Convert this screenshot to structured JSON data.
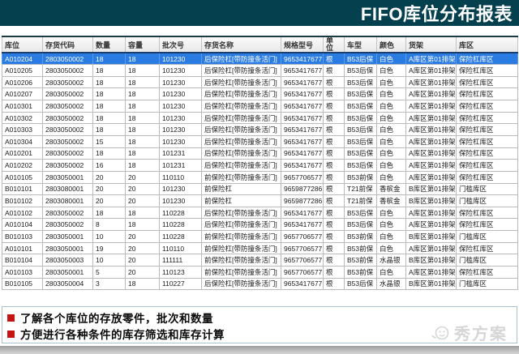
{
  "title": "FIFO库位分布报表",
  "table": {
    "columns": [
      "库位",
      "存货代码",
      "数量",
      "容量",
      "批次号",
      "存货名称",
      "规格型号",
      "单位",
      "车型",
      "颜色",
      "货架",
      "库区"
    ],
    "selected_row_index": 0,
    "rows": [
      [
        "A010204",
        "2803050002",
        "18",
        "18",
        "101230",
        "后保险杠[带防撞条活门]",
        "9653417677",
        "根",
        "B53后保",
        "白色",
        "A库区第01排架",
        "保险杠库区"
      ],
      [
        "A010205",
        "2803050002",
        "18",
        "18",
        "101230",
        "后保险杠[带防撞条活门]",
        "9653417677",
        "根",
        "B53后保",
        "白色",
        "A库区第01排架",
        "保险杠库区"
      ],
      [
        "A010206",
        "2803050002",
        "18",
        "18",
        "101230",
        "后保险杠[带防撞条活门]",
        "9653417677",
        "根",
        "B53后保",
        "白色",
        "A库区第01排架",
        "保险杠库区"
      ],
      [
        "A010207",
        "2803050002",
        "18",
        "18",
        "101230",
        "后保险杠[带防撞条活门]",
        "9653417677",
        "根",
        "B53后保",
        "白色",
        "A库区第01排架",
        "保险杠库区"
      ],
      [
        "A010301",
        "2803050002",
        "18",
        "18",
        "101230",
        "后保险杠[带防撞条活门]",
        "9653417677",
        "根",
        "B53后保",
        "白色",
        "A库区第01排架",
        "保险杠库区"
      ],
      [
        "A010302",
        "2803050002",
        "18",
        "18",
        "101230",
        "后保险杠[带防撞条活门]",
        "9653417677",
        "根",
        "B53后保",
        "白色",
        "A库区第01排架",
        "保险杠库区"
      ],
      [
        "A010303",
        "2803050002",
        "18",
        "18",
        "101230",
        "后保险杠[带防撞条活门]",
        "9653417677",
        "根",
        "B53后保",
        "白色",
        "A库区第01排架",
        "保险杠库区"
      ],
      [
        "A010304",
        "2803050002",
        "15",
        "18",
        "101230",
        "后保险杠[带防撞条活门]",
        "9653417677",
        "根",
        "B53后保",
        "白色",
        "A库区第01排架",
        "保险杠库区"
      ],
      [
        "A010201",
        "2803050002",
        "18",
        "18",
        "101231",
        "后保险杠[带防撞条活门]",
        "9653417677",
        "根",
        "B53后保",
        "白色",
        "A库区第01排架",
        "保险杠库区"
      ],
      [
        "A010202",
        "2803050002",
        "16",
        "18",
        "101231",
        "后保险杠[带防撞条活门]",
        "9653417677",
        "根",
        "B53后保",
        "白色",
        "A库区第01排架",
        "保险杠库区"
      ],
      [
        "A010105",
        "2803050001",
        "20",
        "20",
        "110110",
        "前保险杠[带防撞条活门]",
        "9657706577",
        "根",
        "B53前保",
        "白色",
        "A库区第01排架",
        "保险杠库区"
      ],
      [
        "B010101",
        "2803080001",
        "20",
        "20",
        "101230",
        "前保险杠",
        "9659877286",
        "根",
        "T21前保",
        "香槟金",
        "B库区第01排架",
        "门槛库区"
      ],
      [
        "B010102",
        "2803080001",
        "20",
        "20",
        "101230",
        "前保险杠",
        "9659877286",
        "根",
        "T21前保",
        "香槟金",
        "B库区第01排架",
        "门槛库区"
      ],
      [
        "A010102",
        "2803050002",
        "18",
        "18",
        "110228",
        "后保险杠[带防撞条活门]",
        "9653417677",
        "根",
        "B53后保",
        "白色",
        "A库区第01排架",
        "保险杠库区"
      ],
      [
        "A010104",
        "2803050002",
        "8",
        "18",
        "110228",
        "后保险杠[带防撞条活门]",
        "9653417677",
        "根",
        "B53后保",
        "白色",
        "A库区第01排架",
        "保险杠库区"
      ],
      [
        "B010103",
        "2803050001",
        "10",
        "20",
        "110228",
        "前保险杠[带防撞条活门]",
        "9657706577",
        "根",
        "B53前保",
        "白色",
        "B库区第01排架",
        "门槛库区"
      ],
      [
        "A010101",
        "2803050001",
        "19",
        "20",
        "110110",
        "前保险杠[带防撞条活门]",
        "9657706577",
        "根",
        "B53前保",
        "白色",
        "A库区第01排架",
        "保险杠库区"
      ],
      [
        "B010104",
        "2803050003",
        "10",
        "20",
        "111111",
        "前保险杠[带防撞条活门]",
        "9657706577",
        "根",
        "B53前保",
        "水晶银",
        "B库区第01排架",
        "门槛库区"
      ],
      [
        "A010103",
        "2803050001",
        "5",
        "20",
        "110123",
        "前保险杠[带防撞条活门]",
        "9657706577",
        "根",
        "B53前保",
        "白色",
        "A库区第01排架",
        "保险杠库区"
      ],
      [
        "B010105",
        "2803050004",
        "3",
        "18",
        "110227",
        "后保险杠[带防撞条活门]",
        "9653417677",
        "根",
        "B53后保",
        "水晶银",
        "B库区第01排架",
        "门槛库区"
      ]
    ]
  },
  "bullets": [
    "了解各个库位的存放零件，批次和数量",
    "方便进行各种条件的库存筛选和库存计算"
  ],
  "watermark": {
    "text": "秀方案"
  },
  "colors": {
    "title_bar": "#05404f",
    "selected_row": "#2a7ce2",
    "selected_row_top_border": "#1b3e6d",
    "bullet": "#c41414",
    "notes_border": "#a9c4cf"
  }
}
